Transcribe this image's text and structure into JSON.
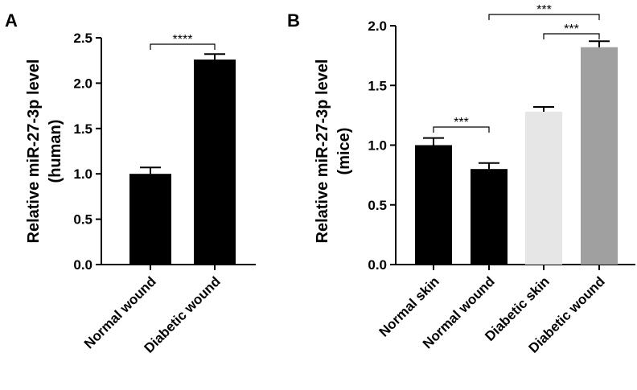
{
  "chart_data": [
    {
      "panel": "A",
      "type": "bar",
      "title": "",
      "xlabel": "",
      "ylabel": "Relative miR-27-3p level",
      "ylabel2": "(human)",
      "categories": [
        "Normal wound",
        "Diabetic wound"
      ],
      "values": [
        1.0,
        2.26
      ],
      "errors": [
        0.07,
        0.06
      ],
      "colors": [
        "#000000",
        "#000000"
      ],
      "ylim": [
        0,
        2.5
      ],
      "yticks": [
        "0.0",
        "0.5",
        "1.0",
        "1.5",
        "2.0",
        "2.5"
      ],
      "significance": [
        {
          "from": 0,
          "to": 1,
          "label": "****"
        }
      ],
      "grid": false
    },
    {
      "panel": "B",
      "type": "bar",
      "title": "",
      "xlabel": "",
      "ylabel": "Relative miR-27-3p level",
      "ylabel2": "(mice)",
      "categories": [
        "Normal skin",
        "Normal wound",
        "Diabetic skin",
        "Diabetic wound"
      ],
      "values": [
        1.0,
        0.8,
        1.28,
        1.82
      ],
      "errors": [
        0.06,
        0.05,
        0.04,
        0.05
      ],
      "colors": [
        "#000000",
        "#000000",
        "#e6e6e6",
        "#a0a0a0"
      ],
      "ylim": [
        0,
        2.0
      ],
      "yticks": [
        "0.0",
        "0.5",
        "1.0",
        "1.5",
        "2.0"
      ],
      "significance": [
        {
          "from": 0,
          "to": 1,
          "label": "***"
        },
        {
          "from": 2,
          "to": 3,
          "label": "***"
        },
        {
          "from": 1,
          "to": 3,
          "label": "***"
        }
      ],
      "grid": false
    }
  ]
}
